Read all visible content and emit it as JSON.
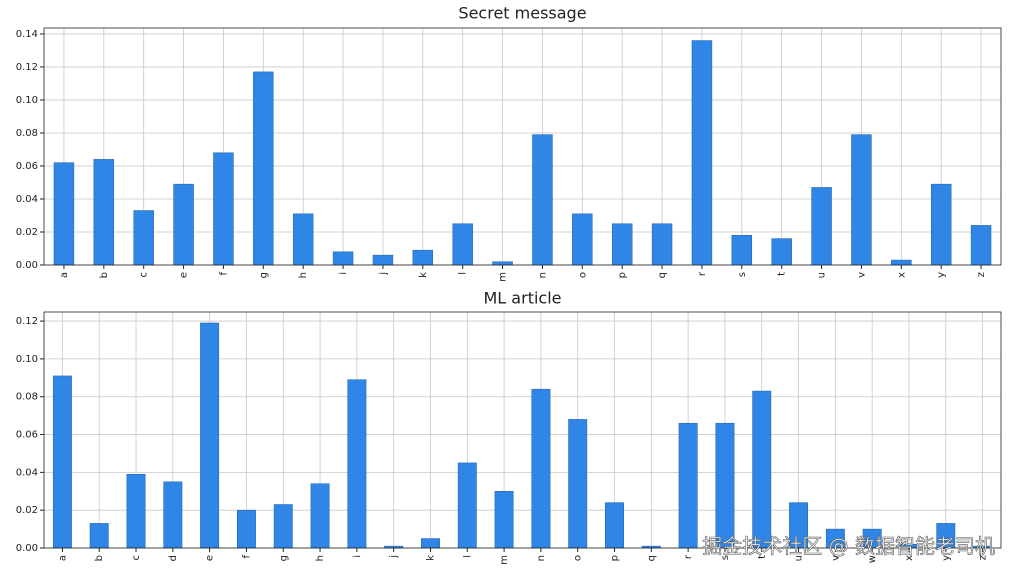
{
  "chart_data": [
    {
      "type": "bar",
      "title": "Secret message",
      "categories": [
        "a",
        "b",
        "c",
        "e",
        "f",
        "g",
        "h",
        "i",
        "j",
        "k",
        "l",
        "m",
        "n",
        "o",
        "p",
        "q",
        "r",
        "s",
        "t",
        "u",
        "v",
        "x",
        "y",
        "z"
      ],
      "values": [
        0.062,
        0.064,
        0.033,
        0.049,
        0.068,
        0.117,
        0.031,
        0.008,
        0.006,
        0.009,
        0.025,
        0.002,
        0.079,
        0.031,
        0.025,
        0.025,
        0.136,
        0.018,
        0.016,
        0.047,
        0.079,
        0.003,
        0.049,
        0.024
      ],
      "color": "#2f86e6",
      "grid": true,
      "ylim": [
        0,
        0.1436
      ],
      "yticks": [
        {
          "value": 0,
          "label": "0.00"
        },
        {
          "value": 0.02,
          "label": "0.02"
        },
        {
          "value": 0.04,
          "label": "0.04"
        },
        {
          "value": 0.06,
          "label": "0.06"
        },
        {
          "value": 0.08,
          "label": "0.08"
        },
        {
          "value": 0.1,
          "label": "0.10"
        },
        {
          "value": 0.12,
          "label": "0.12"
        },
        {
          "value": 0.14,
          "label": "0.14"
        }
      ]
    },
    {
      "type": "bar",
      "title": "ML article",
      "categories": [
        "a",
        "b",
        "c",
        "d",
        "e",
        "f",
        "g",
        "h",
        "i",
        "j",
        "k",
        "l",
        "m",
        "n",
        "o",
        "p",
        "q",
        "r",
        "s",
        "t",
        "u",
        "v",
        "w",
        "x",
        "y",
        "z"
      ],
      "values": [
        0.091,
        0.013,
        0.039,
        0.035,
        0.119,
        0.02,
        0.023,
        0.034,
        0.089,
        0.001,
        0.005,
        0.045,
        0.03,
        0.084,
        0.068,
        0.024,
        0.001,
        0.066,
        0.066,
        0.083,
        0.024,
        0.01,
        0.01,
        0.002,
        0.013,
        0.001
      ],
      "color": "#2f86e6",
      "grid": true,
      "ylim": [
        0,
        0.1248
      ],
      "yticks": [
        {
          "value": 0,
          "label": "0.00"
        },
        {
          "value": 0.02,
          "label": "0.02"
        },
        {
          "value": 0.04,
          "label": "0.04"
        },
        {
          "value": 0.06,
          "label": "0.06"
        },
        {
          "value": 0.08,
          "label": "0.08"
        },
        {
          "value": 0.1,
          "label": "0.10"
        },
        {
          "value": 0.12,
          "label": "0.12"
        }
      ]
    }
  ],
  "watermark": "掘金技术社区 @ 数据智能老司机"
}
